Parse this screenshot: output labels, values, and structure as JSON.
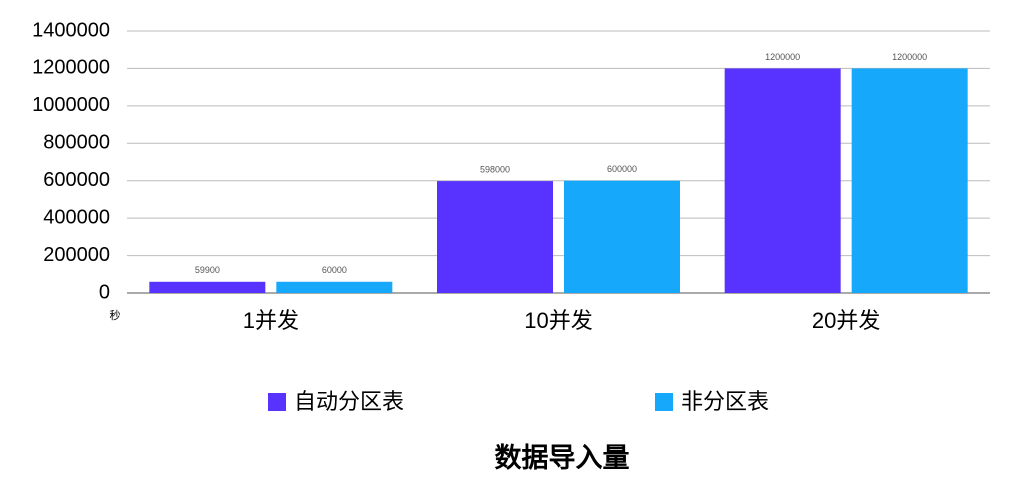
{
  "chart_data": {
    "type": "bar",
    "title": "数据导入量",
    "ylabel": "秒",
    "categories": [
      "1并发",
      "10并发",
      "20并发"
    ],
    "series": [
      {
        "name": "自动分区表",
        "color": "#5833ff",
        "values": [
          59900,
          598000,
          1200000
        ]
      },
      {
        "name": "非分区表",
        "color": "#16a8fb",
        "values": [
          60000,
          600000,
          1200000
        ]
      }
    ],
    "ylim": [
      0,
      1400000
    ],
    "yticks": [
      0,
      200000,
      400000,
      600000,
      800000,
      1000000,
      1200000,
      1400000
    ],
    "grid": true,
    "legend": "bottom"
  }
}
